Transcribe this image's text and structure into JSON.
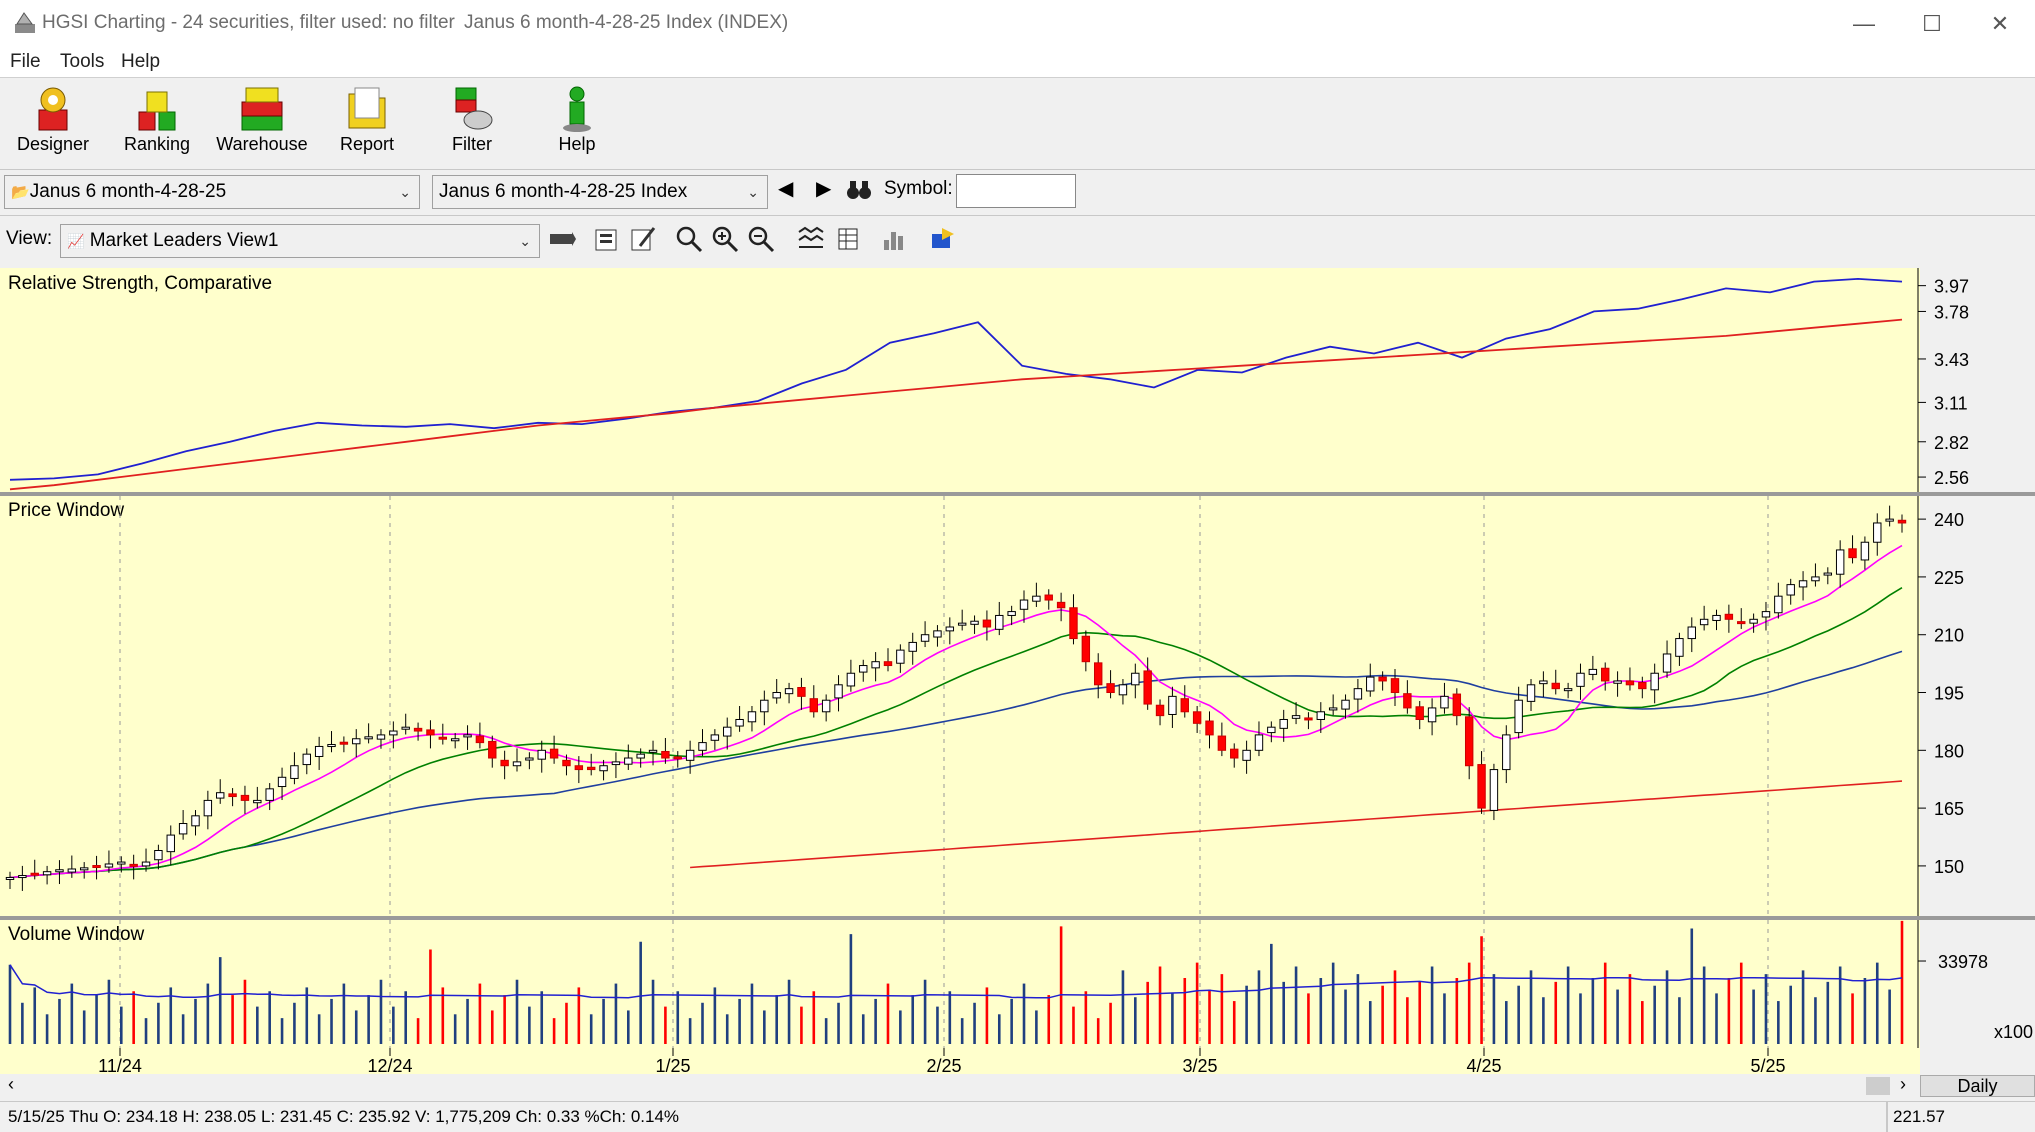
{
  "window": {
    "title": "HGSI Charting - 24 securities, filter used: no filter",
    "subtitle": "Janus 6 month-4-28-25 Index (INDEX)"
  },
  "menu": [
    "File",
    "Tools",
    "Help"
  ],
  "toolbar": [
    "Designer",
    "Ranking",
    "Warehouse",
    "Report",
    "Filter",
    "Help"
  ],
  "selectors": {
    "folder": "Janus 6 month-4-28-25",
    "security": "Janus 6 month-4-28-25 Index",
    "symbol_label": "Symbol:",
    "symbol_value": ""
  },
  "view": {
    "label": "View:",
    "selected": "Market Leaders View1"
  },
  "panels": {
    "rs_title": "Relative Strength, Comparative",
    "price_title": "Price Window",
    "volume_title": "Volume Window"
  },
  "colors": {
    "chart_bg": "#ffffcc",
    "up_candle": "#ffffff",
    "down_candle": "#ff0000",
    "ma_magenta": "#ff00ff",
    "ma_green": "#008000",
    "ma_blue": "#1f3f9f",
    "ma_red": "#e02020",
    "volume_up": "#1f3f7f",
    "volume_down": "#ff0000"
  },
  "chart_data": [
    {
      "type": "line",
      "title": "Relative Strength, Comparative",
      "y_ticks": [
        3.97,
        3.78,
        3.43,
        3.11,
        2.82,
        2.56
      ],
      "ylim": [
        2.45,
        4.1
      ],
      "series": [
        {
          "values": [
            2.54,
            2.55,
            2.58,
            2.66,
            2.75,
            2.82,
            2.9,
            2.96,
            2.94,
            2.93,
            2.95,
            2.92,
            2.96,
            2.95,
            2.99,
            3.04,
            3.07,
            3.12,
            3.25,
            3.35,
            3.55,
            3.62,
            3.7,
            3.38,
            3.32,
            3.28,
            3.22,
            3.35,
            3.33,
            3.44,
            3.52,
            3.47,
            3.55,
            3.44,
            3.58,
            3.65,
            3.78,
            3.8,
            3.87,
            3.95,
            3.92,
            4.0,
            4.02,
            4.0
          ]
        },
        {
          "values": [
            2.47,
            2.5,
            2.54,
            2.58,
            2.62,
            2.66,
            2.7,
            2.74,
            2.78,
            2.82,
            2.86,
            2.9,
            2.94,
            2.97,
            3.0,
            3.03,
            3.07,
            3.1,
            3.13,
            3.16,
            3.19,
            3.22,
            3.25,
            3.28,
            3.3,
            3.32,
            3.34,
            3.36,
            3.38,
            3.4,
            3.42,
            3.44,
            3.46,
            3.48,
            3.5,
            3.52,
            3.54,
            3.56,
            3.58,
            3.6,
            3.63,
            3.66,
            3.69,
            3.72
          ]
        }
      ]
    },
    {
      "type": "candlestick",
      "title": "Price Window",
      "y_ticks": [
        240,
        225,
        210,
        195,
        180,
        165,
        150
      ],
      "ylim": [
        137,
        246
      ],
      "x_tick_labels": [
        "11/24",
        "12/24",
        "1/25",
        "2/25",
        "3/25",
        "4/25",
        "5/25"
      ],
      "closes": [
        147,
        147.5,
        148,
        148.5,
        149,
        149.2,
        149.5,
        150,
        150.5,
        151,
        150,
        151,
        154,
        158,
        161,
        163,
        167,
        169,
        168,
        167,
        167,
        170,
        173,
        176,
        179,
        181,
        181.5,
        182,
        183,
        183.5,
        184,
        185,
        186,
        185,
        184,
        183,
        183,
        184,
        182,
        178,
        176,
        177,
        178,
        180,
        178,
        176,
        175,
        175,
        176,
        177,
        178,
        179,
        180,
        178,
        178,
        180,
        182,
        184,
        186,
        188,
        190,
        193,
        195,
        196,
        194,
        190,
        193,
        197,
        200,
        202,
        203,
        202,
        206,
        208,
        210,
        211,
        212,
        213,
        213.5,
        212,
        215,
        216,
        219,
        220,
        219,
        217,
        209,
        203,
        197,
        195,
        197,
        200,
        192,
        189,
        194,
        190,
        187,
        184,
        180,
        178,
        180,
        184,
        186,
        188,
        189,
        188,
        190,
        191,
        193,
        196,
        199,
        198,
        195,
        191,
        188,
        191,
        194,
        189,
        176,
        165,
        175,
        184,
        193,
        197,
        198,
        196,
        196,
        200,
        201,
        198,
        198,
        197,
        196,
        200,
        205,
        209,
        212,
        214,
        215,
        214,
        213,
        214,
        216,
        220,
        223,
        224,
        225,
        226,
        232,
        230,
        234,
        239,
        240,
        239
      ]
    },
    {
      "type": "bar",
      "title": "Volume Window",
      "y_ticks": [
        33978
      ],
      "unit_label": "x100"
    }
  ],
  "x_axis": [
    "11/24",
    "12/24",
    "1/25",
    "2/25",
    "3/25",
    "4/25",
    "5/25"
  ],
  "scroll": {
    "period": "Daily"
  },
  "status": {
    "text": "5/15/25 Thu O: 234.18 H: 238.05 L: 231.45 C: 235.92 V: 1,775,209 Ch: 0.33 %Ch: 0.14%",
    "value": "221.57"
  }
}
